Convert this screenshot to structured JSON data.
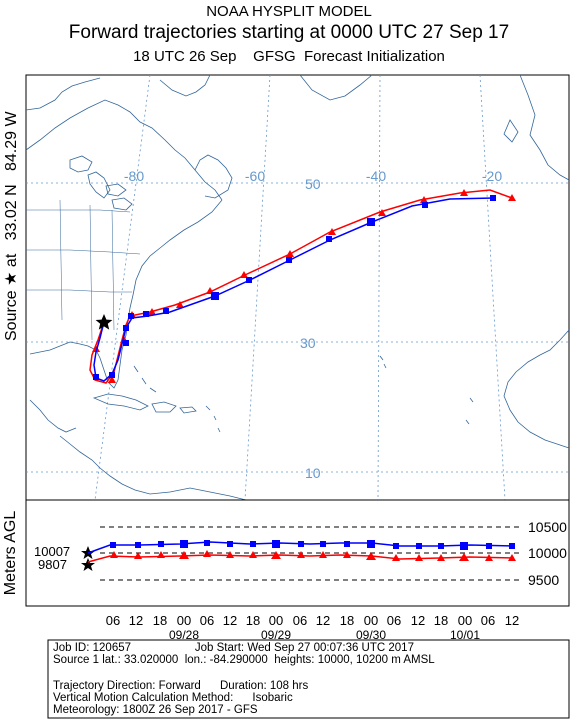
{
  "header": {
    "model_name": "NOAA HYSPLIT MODEL",
    "title": "Forward trajectories starting at 0000 UTC 27 Sep 17",
    "subtitle": "18 UTC 26 Sep    GFSG  Forecast Initialization"
  },
  "map": {
    "side_label": "Source ★ at   33.02 N   84.29 W",
    "lon_labels": [
      "-80",
      "-60",
      "-40",
      "-20"
    ],
    "lat_labels": [
      "50",
      "30",
      "10"
    ],
    "source_marker": "star-icon",
    "colors": {
      "traj_low": "#ff0000",
      "traj_high": "#0000ff",
      "grid": "#6699cc",
      "coast": "#336699"
    }
  },
  "vertical_panel": {
    "ylabel": "Meters AGL",
    "ytick_labels": [
      "10500",
      "10000",
      "9500"
    ],
    "start_heights": [
      "10007",
      "9807"
    ],
    "hour_labels": [
      "06",
      "12",
      "18",
      "00",
      "06",
      "12",
      "18",
      "00",
      "06",
      "12",
      "18",
      "00",
      "06",
      "12",
      "18",
      "00",
      "06",
      "12"
    ],
    "date_labels": [
      "09/28",
      "09/29",
      "09/30",
      "10/01"
    ]
  },
  "info": {
    "line1": "Job ID: 120657                    Job Start: Wed Sep 27 00:07:36 UTC 2017",
    "line2": "Source 1 lat.: 33.020000  lon.: -84.290000  heights: 10000, 10200 m AMSL",
    "line3": "Trajectory Direction: Forward      Duration: 108 hrs",
    "line4": "Vertical Motion Calculation Method:      Isobaric",
    "line5": "Meteorology: 1800Z 26 Sep 2017 - GFS"
  }
}
